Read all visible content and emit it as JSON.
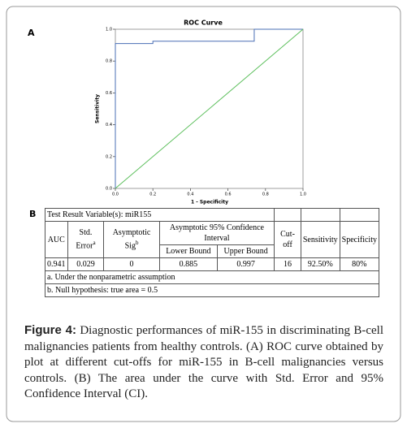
{
  "panel_a": "A",
  "panel_b": "B",
  "chart_data": {
    "type": "line",
    "title": "ROC Curve",
    "x_label": "1 - Specificity",
    "y_label": "Sensitivity",
    "xlim": [
      0,
      1
    ],
    "ylim": [
      0,
      1
    ],
    "xticks": [
      {
        "value": 0,
        "label": "0.0"
      },
      0.2,
      0.4,
      0.6,
      0.8,
      {
        "value": 1,
        "label": "1.0"
      }
    ],
    "yticks": [
      {
        "value": 0,
        "label": "0.0"
      },
      0.2,
      0.4,
      0.6,
      0.8,
      {
        "value": 1,
        "label": "1.0"
      }
    ],
    "series": [
      {
        "color": "#4a6fb5",
        "x": [
          0,
          0,
          0.2,
          0.2,
          0.74,
          0.74,
          1
        ],
        "values": [
          0,
          0.91,
          0.91,
          0.925,
          0.925,
          1,
          1
        ]
      },
      {
        "color": "#5cbf5c",
        "x": [
          0,
          1
        ],
        "values": [
          0,
          1
        ]
      }
    ]
  },
  "table": {
    "title": "Test Result Variable(s):  miR155",
    "auc": "AUC",
    "std_error": "Std. Error",
    "std_error_note": "a",
    "sig": "Asymptotic Sig",
    "sig_note": "b",
    "ci_header": "Asymptotic 95% Confidence Interval",
    "ci_lower": "Lower Bound",
    "ci_upper": "Upper Bound",
    "cutoff": "Cut-off",
    "sensitivity": "Sensitivity",
    "specificity": "Specificity",
    "row": [
      "0.941",
      "0.029",
      "0",
      "0.885",
      "0.997",
      "16",
      "92.50%",
      "80%"
    ],
    "footnotes": [
      "a. Under the nonparametric assumption",
      "b. Null hypothesis: true area = 0.5"
    ]
  },
  "caption": {
    "label": "Figure 4:",
    "text": " Diagnostic performances of miR-155 in discriminating B-cell malignancies patients from healthy controls. (A) ROC curve obtained by plot at different cut-offs for miR-155 in B-cell malignancies versus controls. (B) The area under the curve with Std. Error and 95% Confidence Interval (CI)."
  }
}
